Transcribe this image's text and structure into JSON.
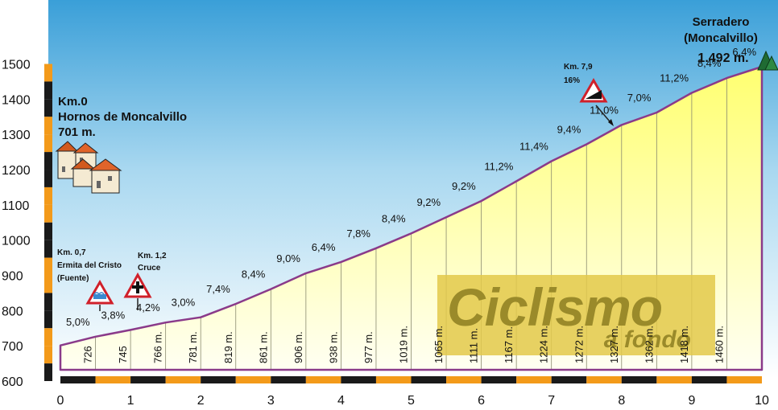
{
  "chart_data": {
    "type": "area",
    "title": "",
    "xlabel": "",
    "ylabel": "",
    "xlim": [
      0,
      10
    ],
    "ylim": [
      600,
      1500
    ],
    "x_ticks": [
      "0",
      "1",
      "2",
      "3",
      "4",
      "5",
      "6",
      "7",
      "8",
      "9",
      "10"
    ],
    "y_ticks": [
      "600",
      "700",
      "800",
      "900",
      "1000",
      "1100",
      "1200",
      "1300",
      "1400",
      "1500"
    ],
    "points": [
      {
        "x": 0.0,
        "y": 701
      },
      {
        "x": 0.5,
        "y": 726,
        "label": "726"
      },
      {
        "x": 1.0,
        "y": 745,
        "label": "745"
      },
      {
        "x": 1.5,
        "y": 766,
        "label": "766 m."
      },
      {
        "x": 2.0,
        "y": 781,
        "label": "781 m."
      },
      {
        "x": 2.5,
        "y": 819,
        "label": "819 m."
      },
      {
        "x": 3.0,
        "y": 861,
        "label": "861 m."
      },
      {
        "x": 3.5,
        "y": 906,
        "label": "906 m."
      },
      {
        "x": 4.0,
        "y": 938,
        "label": "938 m."
      },
      {
        "x": 4.5,
        "y": 977,
        "label": "977 m."
      },
      {
        "x": 5.0,
        "y": 1019,
        "label": "1019 m."
      },
      {
        "x": 5.5,
        "y": 1065,
        "label": "1065 m."
      },
      {
        "x": 6.0,
        "y": 1111,
        "label": "1111 m."
      },
      {
        "x": 6.5,
        "y": 1167,
        "label": "1167 m."
      },
      {
        "x": 7.0,
        "y": 1224,
        "label": "1224 m."
      },
      {
        "x": 7.5,
        "y": 1272,
        "label": "1272 m."
      },
      {
        "x": 8.0,
        "y": 1327,
        "label": "1327 m."
      },
      {
        "x": 8.5,
        "y": 1362,
        "label": "1362 m."
      },
      {
        "x": 9.0,
        "y": 1418,
        "label": "1418 m."
      },
      {
        "x": 9.5,
        "y": 1460,
        "label": "1460 m."
      },
      {
        "x": 10.0,
        "y": 1492
      }
    ],
    "gradients": [
      "5,0%",
      "3,8%",
      "4,2%",
      "3,0%",
      "7,4%",
      "8,4%",
      "9,0%",
      "6,4%",
      "7,8%",
      "8,4%",
      "9,2%",
      "9,2%",
      "11,2%",
      "11,4%",
      "9,4%",
      "11,0%",
      "7,0%",
      "11,2%",
      "8,4%",
      "6,4%"
    ]
  },
  "start": {
    "km": "Km.0",
    "name": "Hornos de Moncalvillo",
    "alt": "701 m.",
    "icon": "village-icon"
  },
  "finish": {
    "name": "Serradero",
    "subname": "(Moncalvillo)",
    "alt": "1.492 m.",
    "icon": "mountain-peaks-icon"
  },
  "annotations": [
    {
      "id": "fuente",
      "lines": [
        "Km. 0,7",
        "Ermita del Cristo",
        "(Fuente)"
      ],
      "icon": "water-fountain-sign-icon"
    },
    {
      "id": "cruce",
      "lines": [
        "Km. 1,2",
        "Cruce"
      ],
      "icon": "crossroads-sign-icon"
    },
    {
      "id": "steep",
      "lines": [
        "Km. 7,9",
        "16%"
      ],
      "icon": "steep-slope-sign-icon"
    }
  ],
  "brand": {
    "line1": "Ciclismo",
    "line2": "a fondo",
    "color": "#9a8a2a"
  },
  "colors": {
    "profile_line": "#8a3a8a",
    "axis_orange": "#f39a1a",
    "axis_black": "#1a1a1a",
    "sky_top": "#3a9fd8",
    "fill_top": "#ffff80"
  }
}
